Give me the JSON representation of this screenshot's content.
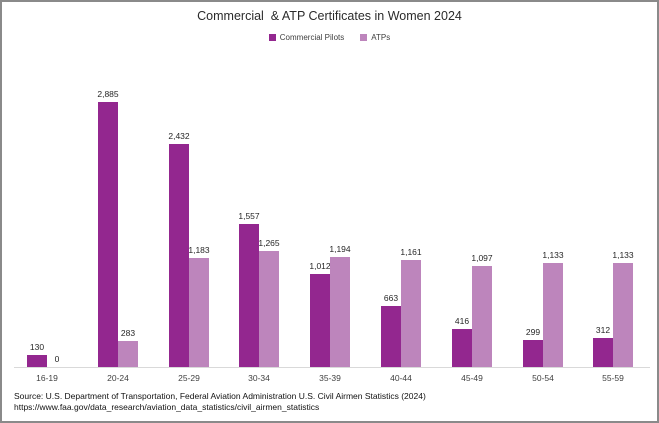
{
  "title": "Commercial  & ATP Certificates in Women 2024",
  "source": {
    "line1": "Source: U.S. Department of Transportation, Federal Aviation Administration U.S. Civil Airmen Statistics (2024)",
    "line2": "https://www.faa.gov/data_research/aviation_data_statistics/civil_airmen_statistics"
  },
  "colors": {
    "commercial": "#93278F",
    "atp": "#BD85BC",
    "axis_line": "#D9D9D9",
    "frame_border": "#8A8A8A"
  },
  "chart_data": {
    "type": "bar",
    "title": "Commercial  & ATP Certificates in Women 2024",
    "categories": [
      "16-19",
      "20-24",
      "25-29",
      "30-34",
      "35-39",
      "40-44",
      "45-49",
      "50-54",
      "55-59"
    ],
    "series": [
      {
        "name": "Commercial Pilots",
        "color": "#93278F",
        "values": [
          130,
          2885,
          2432,
          1557,
          1012,
          663,
          416,
          299,
          312
        ]
      },
      {
        "name": "ATPs",
        "color": "#BD85BC",
        "values": [
          0,
          283,
          1183,
          1265,
          1194,
          1161,
          1097,
          1133,
          1133
        ]
      }
    ],
    "xlabel": "",
    "ylabel": "",
    "ylim": [
      0,
      2885
    ],
    "grid": false,
    "y_axis_shown": false,
    "legend_position": "top",
    "value_labels": true,
    "value_label_format": "thousands-comma"
  }
}
